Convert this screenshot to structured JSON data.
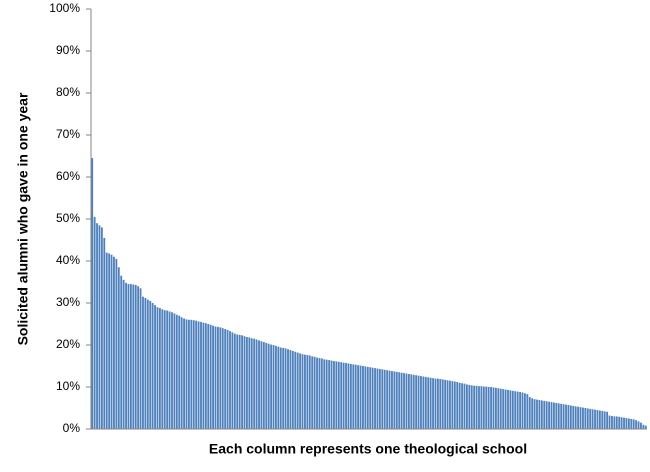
{
  "chart_data": {
    "type": "bar",
    "x_label": "Each column represents one theological school",
    "y_label": "Solicited alumni who gave in one year",
    "color": "#4f81bd",
    "ylim": [
      0,
      100
    ],
    "yticks": [
      {
        "value": 0,
        "label": "0%"
      },
      {
        "value": 10,
        "label": "10%"
      },
      {
        "value": 20,
        "label": "20%"
      },
      {
        "value": 30,
        "label": "30%"
      },
      {
        "value": 40,
        "label": "40%"
      },
      {
        "value": 50,
        "label": "50%"
      },
      {
        "value": 60,
        "label": "60%"
      },
      {
        "value": 70,
        "label": "70%"
      },
      {
        "value": 80,
        "label": "80%"
      },
      {
        "value": 90,
        "label": "90%"
      },
      {
        "value": 100,
        "label": "100%"
      }
    ],
    "grid": false,
    "categories": [
      null,
      null,
      null,
      null,
      null,
      null,
      null,
      null,
      null,
      null,
      null,
      null,
      null,
      null,
      null,
      null,
      null,
      null,
      null,
      null,
      null,
      null,
      null,
      null,
      null,
      null,
      null,
      null,
      null,
      null,
      null,
      null,
      null,
      null,
      null,
      null,
      null,
      null,
      null,
      null,
      null,
      null,
      null,
      null,
      null,
      null,
      null,
      null,
      null,
      null,
      null,
      null,
      null,
      null,
      null,
      null,
      null,
      null,
      null,
      null,
      null,
      null,
      null,
      null,
      null,
      null,
      null,
      null,
      null,
      null,
      null,
      null,
      null,
      null,
      null,
      null,
      null,
      null,
      null,
      null,
      null,
      null,
      null,
      null,
      null,
      null,
      null,
      null,
      null,
      null,
      null,
      null,
      null,
      null,
      null,
      null,
      null,
      null,
      null,
      null,
      null,
      null,
      null,
      null,
      null,
      null,
      null,
      null,
      null,
      null,
      null,
      null,
      null,
      null,
      null,
      null,
      null,
      null,
      null,
      null,
      null,
      null,
      null,
      null,
      null,
      null,
      null,
      null,
      null,
      null,
      null,
      null,
      null,
      null,
      null,
      null,
      null,
      null,
      null,
      null,
      null,
      null,
      null,
      null,
      null,
      null,
      null,
      null,
      null,
      null,
      null,
      null,
      null,
      null,
      null,
      null,
      null,
      null,
      null,
      null,
      null,
      null,
      null,
      null,
      null,
      null,
      null,
      null,
      null,
      null,
      null,
      null,
      null,
      null,
      null,
      null,
      null,
      null,
      null,
      null,
      null,
      null,
      null,
      null,
      null,
      null,
      null,
      null,
      null,
      null,
      null,
      null,
      null,
      null,
      null,
      null,
      null,
      null,
      null,
      null,
      null,
      null,
      null,
      null,
      null,
      null,
      null,
      null,
      null,
      null,
      null,
      null,
      null,
      null,
      null,
      null,
      null,
      null,
      null,
      null,
      null,
      null,
      null,
      null,
      null,
      null,
      null,
      null,
      null,
      null
    ],
    "values": [
      64.5,
      50.5,
      49,
      48.5,
      48,
      45.5,
      42,
      41.8,
      41.5,
      41,
      40.5,
      38.5,
      36.5,
      35.5,
      34.8,
      34.5,
      34.5,
      34.4,
      34.3,
      34,
      33.5,
      31.5,
      31.2,
      30.8,
      30.5,
      30,
      29.5,
      29,
      28.8,
      28.5,
      28.3,
      28.2,
      28,
      27.8,
      27.5,
      27.2,
      27,
      26.6,
      26.3,
      26.1,
      26,
      26,
      25.9,
      25.8,
      25.6,
      25.5,
      25.3,
      25.2,
      25,
      24.8,
      24.6,
      24.4,
      24.3,
      24.2,
      24,
      23.8,
      23.6,
      23.3,
      23,
      22.7,
      22.5,
      22.4,
      22.3,
      22.1,
      21.9,
      21.8,
      21.6,
      21.5,
      21.3,
      21.1,
      20.9,
      20.7,
      20.5,
      20.3,
      20.1,
      20,
      19.8,
      19.6,
      19.4,
      19.3,
      19.2,
      19,
      18.8,
      18.6,
      18.4,
      18.2,
      18,
      17.8,
      17.7,
      17.6,
      17.5,
      17.3,
      17.2,
      17,
      16.9,
      16.8,
      16.6,
      16.5,
      16.4,
      16.3,
      16.2,
      16.1,
      16,
      15.9,
      15.8,
      15.7,
      15.6,
      15.5,
      15.4,
      15.3,
      15.2,
      15.1,
      15,
      14.9,
      14.8,
      14.7,
      14.6,
      14.5,
      14.4,
      14.3,
      14.2,
      14.1,
      14,
      13.9,
      13.8,
      13.7,
      13.6,
      13.5,
      13.4,
      13.3,
      13.2,
      13.1,
      13,
      12.9,
      12.8,
      12.7,
      12.6,
      12.5,
      12.4,
      12.3,
      12.2,
      12.1,
      12,
      12,
      11.9,
      11.8,
      11.7,
      11.6,
      11.5,
      11.4,
      11.3,
      11.2,
      11,
      10.9,
      10.8,
      10.6,
      10.5,
      10.4,
      10.3,
      10.3,
      10.2,
      10.2,
      10.1,
      10.1,
      10,
      10,
      9.9,
      9.8,
      9.7,
      9.6,
      9.5,
      9.4,
      9.3,
      9.2,
      9.1,
      9,
      8.9,
      8.8,
      8.7,
      8.5,
      8.3,
      7.6,
      7.3,
      7.1,
      7,
      6.9,
      6.8,
      6.7,
      6.6,
      6.5,
      6.4,
      6.3,
      6.2,
      6.1,
      6,
      5.9,
      5.8,
      5.7,
      5.6,
      5.5,
      5.4,
      5.3,
      5.2,
      5.1,
      5,
      4.9,
      4.8,
      4.7,
      4.6,
      4.5,
      4.4,
      4.3,
      4.2,
      4.1,
      3.2,
      3.1,
      3,
      3,
      2.9,
      2.8,
      2.7,
      2.6,
      2.5,
      2.4,
      2.3,
      2.1,
      1.8,
      1.5,
      1,
      0.8
    ]
  }
}
